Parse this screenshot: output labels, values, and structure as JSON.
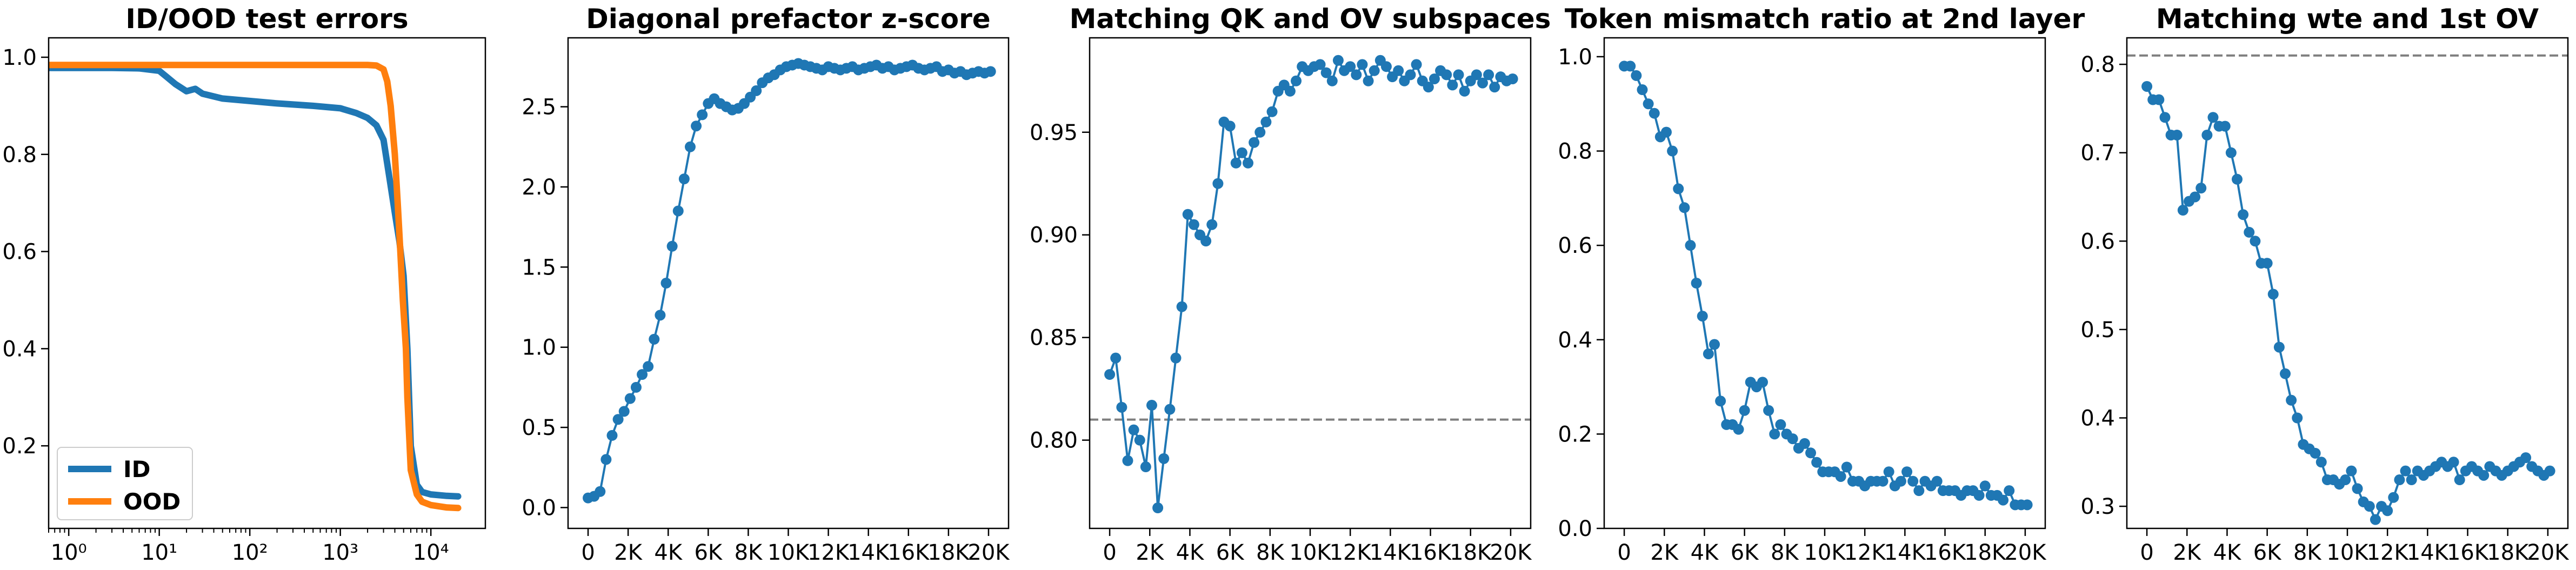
{
  "chart_data": [
    {
      "type": "line",
      "title": "ID/OOD test errors",
      "xscale": "log",
      "xlim": [
        0.6,
        40000
      ],
      "ylim": [
        0.03,
        1.04
      ],
      "xticks": [
        1,
        10,
        100,
        1000,
        10000
      ],
      "xtick_labels": [
        "10⁰",
        "10¹",
        "10²",
        "10³",
        "10⁴"
      ],
      "yticks": [
        0.2,
        0.4,
        0.6,
        0.8,
        1.0
      ],
      "ytick_labels": [
        "0.2",
        "0.4",
        "0.6",
        "0.8",
        "1.0"
      ],
      "legend_position": "lower-left",
      "series": [
        {
          "name": "ID",
          "color": "#1f77b4",
          "x": [
            0.6,
            1,
            3,
            6,
            10,
            12,
            15,
            20,
            25,
            30,
            50,
            100,
            200,
            500,
            1000,
            1500,
            2000,
            2500,
            3000,
            3500,
            4000,
            4500,
            5000,
            5500,
            6000,
            7000,
            8000,
            10000,
            15000,
            20000
          ],
          "y": [
            0.978,
            0.978,
            0.978,
            0.977,
            0.972,
            0.96,
            0.945,
            0.93,
            0.935,
            0.925,
            0.915,
            0.91,
            0.905,
            0.9,
            0.895,
            0.885,
            0.875,
            0.86,
            0.83,
            0.75,
            0.68,
            0.62,
            0.55,
            0.4,
            0.2,
            0.12,
            0.105,
            0.1,
            0.097,
            0.096
          ]
        },
        {
          "name": "OOD",
          "color": "#ff7f0e",
          "x": [
            0.6,
            1,
            10,
            100,
            1000,
            2000,
            2500,
            3000,
            3300,
            3600,
            4000,
            4300,
            4600,
            4900,
            5100,
            5300,
            5500,
            6000,
            7000,
            8000,
            10000,
            15000,
            20000
          ],
          "y": [
            0.984,
            0.984,
            0.984,
            0.984,
            0.984,
            0.984,
            0.983,
            0.975,
            0.95,
            0.9,
            0.8,
            0.7,
            0.6,
            0.5,
            0.45,
            0.4,
            0.3,
            0.15,
            0.1,
            0.085,
            0.078,
            0.073,
            0.072
          ]
        }
      ]
    },
    {
      "type": "line",
      "title": "Diagonal prefactor z-score",
      "xlim": [
        -1000,
        21000
      ],
      "ylim": [
        -0.13,
        2.93
      ],
      "xticks": [
        0,
        2000,
        4000,
        6000,
        8000,
        10000,
        12000,
        14000,
        16000,
        18000,
        20000
      ],
      "xtick_labels": [
        "0",
        "2K",
        "4K",
        "6K",
        "8K",
        "10K",
        "12K",
        "14K",
        "16K",
        "18K",
        "20K"
      ],
      "yticks": [
        0,
        0.5,
        1.0,
        1.5,
        2.0,
        2.5
      ],
      "ytick_labels": [
        "0.0",
        "0.5",
        "1.0",
        "1.5",
        "2.0",
        "2.5"
      ],
      "markers": true,
      "series": [
        {
          "color": "#1f77b4",
          "x": [
            0,
            300,
            600,
            900,
            1200,
            1500,
            1800,
            2100,
            2400,
            2700,
            3000,
            3300,
            3600,
            3900,
            4200,
            4500,
            4800,
            5100,
            5400,
            5700,
            6000,
            6300,
            6600,
            6900,
            7200,
            7500,
            7800,
            8100,
            8400,
            8700,
            9000,
            9300,
            9600,
            9900,
            10200,
            10500,
            10800,
            11100,
            11400,
            11700,
            12000,
            12300,
            12600,
            12900,
            13200,
            13500,
            13800,
            14100,
            14400,
            14700,
            15000,
            15300,
            15600,
            15900,
            16200,
            16500,
            16800,
            17100,
            17400,
            17700,
            18000,
            18300,
            18600,
            18900,
            19200,
            19500,
            19800,
            20100
          ],
          "y": [
            0.06,
            0.07,
            0.1,
            0.3,
            0.45,
            0.55,
            0.6,
            0.68,
            0.75,
            0.83,
            0.88,
            1.05,
            1.2,
            1.4,
            1.63,
            1.85,
            2.05,
            2.25,
            2.38,
            2.45,
            2.52,
            2.55,
            2.52,
            2.5,
            2.48,
            2.49,
            2.52,
            2.56,
            2.6,
            2.65,
            2.68,
            2.7,
            2.73,
            2.75,
            2.76,
            2.77,
            2.76,
            2.75,
            2.74,
            2.73,
            2.75,
            2.74,
            2.73,
            2.74,
            2.75,
            2.73,
            2.74,
            2.75,
            2.76,
            2.74,
            2.75,
            2.73,
            2.74,
            2.75,
            2.76,
            2.74,
            2.73,
            2.74,
            2.75,
            2.72,
            2.73,
            2.71,
            2.72,
            2.7,
            2.71,
            2.72,
            2.71,
            2.72
          ]
        }
      ]
    },
    {
      "type": "line",
      "title": "Matching QK and OV subspaces",
      "xlim": [
        -1000,
        21000
      ],
      "ylim": [
        0.757,
        0.996
      ],
      "xticks": [
        0,
        2000,
        4000,
        6000,
        8000,
        10000,
        12000,
        14000,
        16000,
        18000,
        20000
      ],
      "xtick_labels": [
        "0",
        "2K",
        "4K",
        "6K",
        "8K",
        "10K",
        "12K",
        "14K",
        "16K",
        "18K",
        "20K"
      ],
      "yticks": [
        0.8,
        0.85,
        0.9,
        0.95
      ],
      "ytick_labels": [
        "0.80",
        "0.85",
        "0.90",
        "0.95"
      ],
      "markers": true,
      "hline": {
        "y": 0.81,
        "color": "#7f7f7f"
      },
      "series": [
        {
          "color": "#1f77b4",
          "x": [
            0,
            300,
            600,
            900,
            1200,
            1500,
            1800,
            2100,
            2400,
            2700,
            3000,
            3300,
            3600,
            3900,
            4200,
            4500,
            4800,
            5100,
            5400,
            5700,
            6000,
            6300,
            6600,
            6900,
            7200,
            7500,
            7800,
            8100,
            8400,
            8700,
            9000,
            9300,
            9600,
            9900,
            10200,
            10500,
            10800,
            11100,
            11400,
            11700,
            12000,
            12300,
            12600,
            12900,
            13200,
            13500,
            13800,
            14100,
            14400,
            14700,
            15000,
            15300,
            15600,
            15900,
            16200,
            16500,
            16800,
            17100,
            17400,
            17700,
            18000,
            18300,
            18600,
            18900,
            19200,
            19500,
            19800,
            20100
          ],
          "y": [
            0.832,
            0.84,
            0.816,
            0.79,
            0.805,
            0.8,
            0.787,
            0.817,
            0.767,
            0.791,
            0.815,
            0.84,
            0.865,
            0.91,
            0.905,
            0.9,
            0.897,
            0.905,
            0.925,
            0.955,
            0.953,
            0.935,
            0.94,
            0.935,
            0.945,
            0.95,
            0.955,
            0.96,
            0.97,
            0.973,
            0.97,
            0.975,
            0.982,
            0.98,
            0.982,
            0.983,
            0.979,
            0.975,
            0.985,
            0.98,
            0.982,
            0.978,
            0.983,
            0.975,
            0.98,
            0.985,
            0.982,
            0.977,
            0.98,
            0.975,
            0.978,
            0.983,
            0.975,
            0.972,
            0.976,
            0.98,
            0.978,
            0.973,
            0.978,
            0.97,
            0.975,
            0.978,
            0.974,
            0.978,
            0.972,
            0.977,
            0.975,
            0.976
          ]
        }
      ]
    },
    {
      "type": "line",
      "title": "Token mismatch ratio at 2nd layer",
      "xlim": [
        -1000,
        21000
      ],
      "ylim": [
        0.0,
        1.04
      ],
      "xticks": [
        0,
        2000,
        4000,
        6000,
        8000,
        10000,
        12000,
        14000,
        16000,
        18000,
        20000
      ],
      "xtick_labels": [
        "0",
        "2K",
        "4K",
        "6K",
        "8K",
        "10K",
        "12K",
        "14K",
        "16K",
        "18K",
        "20K"
      ],
      "yticks": [
        0,
        0.2,
        0.4,
        0.6,
        0.8,
        1.0
      ],
      "ytick_labels": [
        "0.0",
        "0.2",
        "0.4",
        "0.6",
        "0.8",
        "1.0"
      ],
      "markers": true,
      "series": [
        {
          "color": "#1f77b4",
          "x": [
            0,
            300,
            600,
            900,
            1200,
            1500,
            1800,
            2100,
            2400,
            2700,
            3000,
            3300,
            3600,
            3900,
            4200,
            4500,
            4800,
            5100,
            5400,
            5700,
            6000,
            6300,
            6600,
            6900,
            7200,
            7500,
            7800,
            8100,
            8400,
            8700,
            9000,
            9300,
            9600,
            9900,
            10200,
            10500,
            10800,
            11100,
            11400,
            11700,
            12000,
            12300,
            12600,
            12900,
            13200,
            13500,
            13800,
            14100,
            14400,
            14700,
            15000,
            15300,
            15600,
            15900,
            16200,
            16500,
            16800,
            17100,
            17400,
            17700,
            18000,
            18300,
            18600,
            18900,
            19200,
            19500,
            19800,
            20100
          ],
          "y": [
            0.98,
            0.98,
            0.96,
            0.93,
            0.9,
            0.88,
            0.83,
            0.84,
            0.8,
            0.72,
            0.68,
            0.6,
            0.52,
            0.45,
            0.37,
            0.39,
            0.27,
            0.22,
            0.22,
            0.21,
            0.25,
            0.31,
            0.3,
            0.31,
            0.25,
            0.2,
            0.22,
            0.2,
            0.19,
            0.17,
            0.18,
            0.16,
            0.14,
            0.12,
            0.12,
            0.12,
            0.11,
            0.13,
            0.1,
            0.1,
            0.09,
            0.1,
            0.1,
            0.1,
            0.12,
            0.09,
            0.1,
            0.12,
            0.1,
            0.08,
            0.1,
            0.09,
            0.1,
            0.08,
            0.08,
            0.08,
            0.07,
            0.08,
            0.08,
            0.07,
            0.09,
            0.07,
            0.07,
            0.06,
            0.08,
            0.05,
            0.05,
            0.05
          ]
        }
      ]
    },
    {
      "type": "line",
      "title": "Matching wte and 1st OV",
      "xlim": [
        -1000,
        21000
      ],
      "ylim": [
        0.275,
        0.83
      ],
      "xticks": [
        0,
        2000,
        4000,
        6000,
        8000,
        10000,
        12000,
        14000,
        16000,
        18000,
        20000
      ],
      "xtick_labels": [
        "0",
        "2K",
        "4K",
        "6K",
        "8K",
        "10K",
        "12K",
        "14K",
        "16K",
        "18K",
        "20K"
      ],
      "yticks": [
        0.3,
        0.4,
        0.5,
        0.6,
        0.7,
        0.8
      ],
      "ytick_labels": [
        "0.3",
        "0.4",
        "0.5",
        "0.6",
        "0.7",
        "0.8"
      ],
      "markers": true,
      "hline": {
        "y": 0.81,
        "color": "#7f7f7f"
      },
      "series": [
        {
          "color": "#1f77b4",
          "x": [
            0,
            300,
            600,
            900,
            1200,
            1500,
            1800,
            2100,
            2400,
            2700,
            3000,
            3300,
            3600,
            3900,
            4200,
            4500,
            4800,
            5100,
            5400,
            5700,
            6000,
            6300,
            6600,
            6900,
            7200,
            7500,
            7800,
            8100,
            8400,
            8700,
            9000,
            9300,
            9600,
            9900,
            10200,
            10500,
            10800,
            11100,
            11400,
            11700,
            12000,
            12300,
            12600,
            12900,
            13200,
            13500,
            13800,
            14100,
            14400,
            14700,
            15000,
            15300,
            15600,
            15900,
            16200,
            16500,
            16800,
            17100,
            17400,
            17700,
            18000,
            18300,
            18600,
            18900,
            19200,
            19500,
            19800,
            20100
          ],
          "y": [
            0.775,
            0.76,
            0.76,
            0.74,
            0.72,
            0.72,
            0.635,
            0.645,
            0.65,
            0.66,
            0.72,
            0.74,
            0.73,
            0.73,
            0.7,
            0.67,
            0.63,
            0.61,
            0.6,
            0.575,
            0.575,
            0.54,
            0.48,
            0.45,
            0.42,
            0.4,
            0.37,
            0.365,
            0.36,
            0.35,
            0.33,
            0.33,
            0.325,
            0.33,
            0.34,
            0.32,
            0.305,
            0.3,
            0.285,
            0.3,
            0.295,
            0.31,
            0.33,
            0.34,
            0.33,
            0.34,
            0.335,
            0.34,
            0.345,
            0.35,
            0.345,
            0.35,
            0.33,
            0.34,
            0.345,
            0.34,
            0.335,
            0.345,
            0.34,
            0.335,
            0.34,
            0.345,
            0.35,
            0.355,
            0.345,
            0.34,
            0.335,
            0.34
          ]
        }
      ]
    }
  ]
}
